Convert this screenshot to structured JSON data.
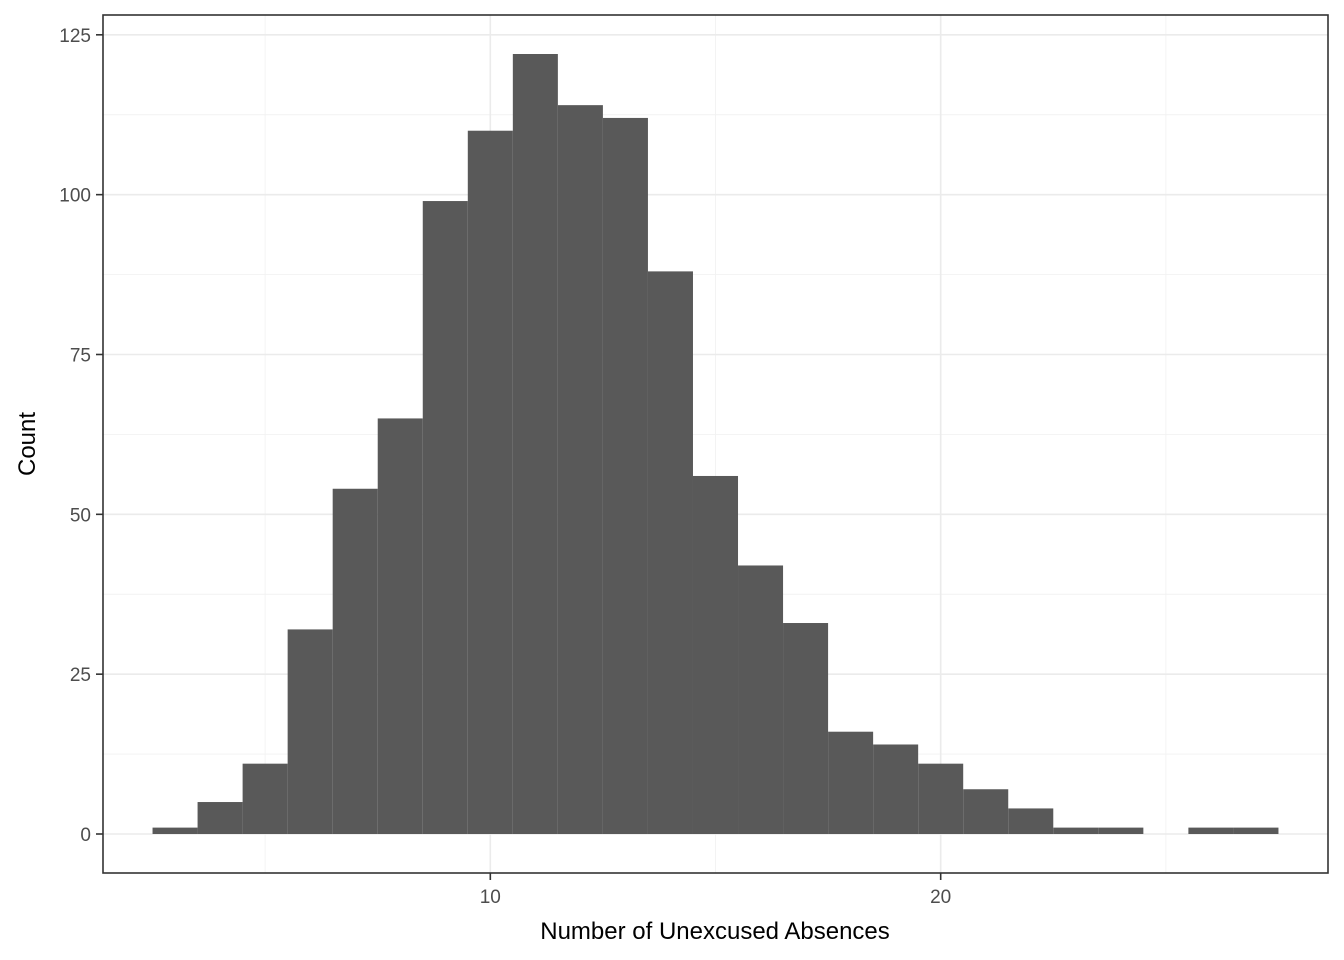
{
  "chart_data": {
    "type": "bar",
    "title": "",
    "xlabel": "Number of Unexcused Absences",
    "ylabel": "Count",
    "bin_width": 1,
    "bins": [
      {
        "start": 2.5,
        "end": 3.5,
        "count": 1
      },
      {
        "start": 3.5,
        "end": 4.5,
        "count": 5
      },
      {
        "start": 4.5,
        "end": 5.5,
        "count": 11
      },
      {
        "start": 5.5,
        "end": 6.5,
        "count": 32
      },
      {
        "start": 6.5,
        "end": 7.5,
        "count": 54
      },
      {
        "start": 7.5,
        "end": 8.5,
        "count": 65
      },
      {
        "start": 8.5,
        "end": 9.5,
        "count": 99
      },
      {
        "start": 9.5,
        "end": 10.5,
        "count": 110
      },
      {
        "start": 10.5,
        "end": 11.5,
        "count": 122
      },
      {
        "start": 11.5,
        "end": 12.5,
        "count": 114
      },
      {
        "start": 12.5,
        "end": 13.5,
        "count": 112
      },
      {
        "start": 13.5,
        "end": 14.5,
        "count": 88
      },
      {
        "start": 14.5,
        "end": 15.5,
        "count": 56
      },
      {
        "start": 15.5,
        "end": 16.5,
        "count": 42
      },
      {
        "start": 16.5,
        "end": 17.5,
        "count": 33
      },
      {
        "start": 17.5,
        "end": 18.5,
        "count": 16
      },
      {
        "start": 18.5,
        "end": 19.5,
        "count": 14
      },
      {
        "start": 19.5,
        "end": 20.5,
        "count": 11
      },
      {
        "start": 20.5,
        "end": 21.5,
        "count": 7
      },
      {
        "start": 21.5,
        "end": 22.5,
        "count": 4
      },
      {
        "start": 22.5,
        "end": 23.5,
        "count": 1
      },
      {
        "start": 23.5,
        "end": 24.5,
        "count": 1
      },
      {
        "start": 24.5,
        "end": 25.5,
        "count": 0
      },
      {
        "start": 25.5,
        "end": 26.5,
        "count": 1
      },
      {
        "start": 26.5,
        "end": 27.5,
        "count": 1
      }
    ],
    "xlim": [
      1.4,
      28.6
    ],
    "ylim": [
      -6.1,
      128.1
    ],
    "x_ticks": [
      10,
      20
    ],
    "x_tick_labels": [
      "10",
      "20"
    ],
    "x_minor_ticks": [
      5,
      15,
      25
    ],
    "y_ticks": [
      0,
      25,
      50,
      75,
      100,
      125
    ],
    "y_tick_labels": [
      "0",
      "25",
      "50",
      "75",
      "100",
      "125"
    ],
    "y_minor_ticks": [
      12.5,
      37.5,
      62.5,
      87.5,
      112.5
    ],
    "grid": true,
    "legend": "none",
    "bar_color": "#595959"
  }
}
